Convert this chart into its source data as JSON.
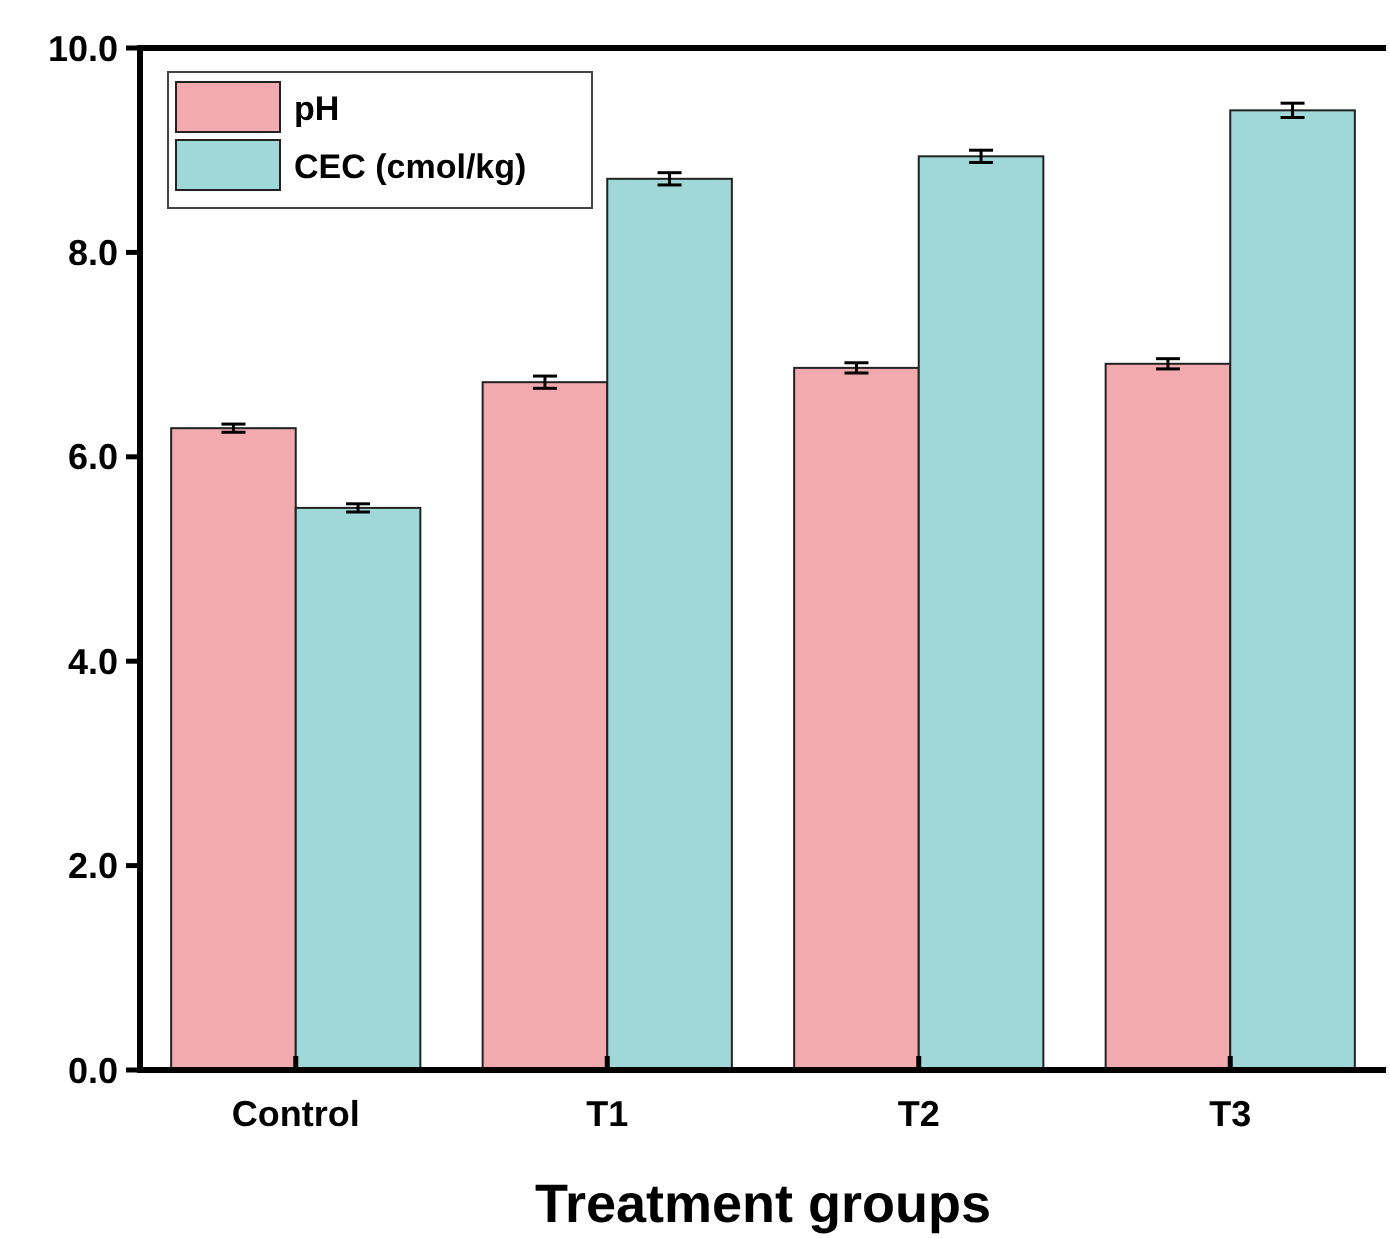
{
  "chart_data": {
    "type": "bar",
    "xlabel": "Treatment groups",
    "categories": [
      "Control",
      "T1",
      "T2",
      "T3"
    ],
    "series": [
      {
        "name": "pH",
        "color": "#f2aaae",
        "values": [
          6.28,
          6.73,
          6.87,
          6.91
        ],
        "errors": [
          0.04,
          0.06,
          0.05,
          0.05
        ]
      },
      {
        "name": "CEC (cmol/kg)",
        "color": "#a0d8d9",
        "values": [
          5.5,
          8.72,
          8.94,
          9.39
        ],
        "errors": [
          0.04,
          0.06,
          0.06,
          0.07
        ]
      }
    ],
    "ylim": [
      0,
      10
    ],
    "yticks": [
      {
        "value": 0,
        "label": "0.0"
      },
      {
        "value": 2,
        "label": "2.0"
      },
      {
        "value": 4,
        "label": "4.0"
      },
      {
        "value": 6,
        "label": "6.0"
      },
      {
        "value": 8,
        "label": "8.0"
      },
      {
        "value": 10,
        "label": "10.0"
      }
    ],
    "legend": "top left",
    "grid": false
  }
}
